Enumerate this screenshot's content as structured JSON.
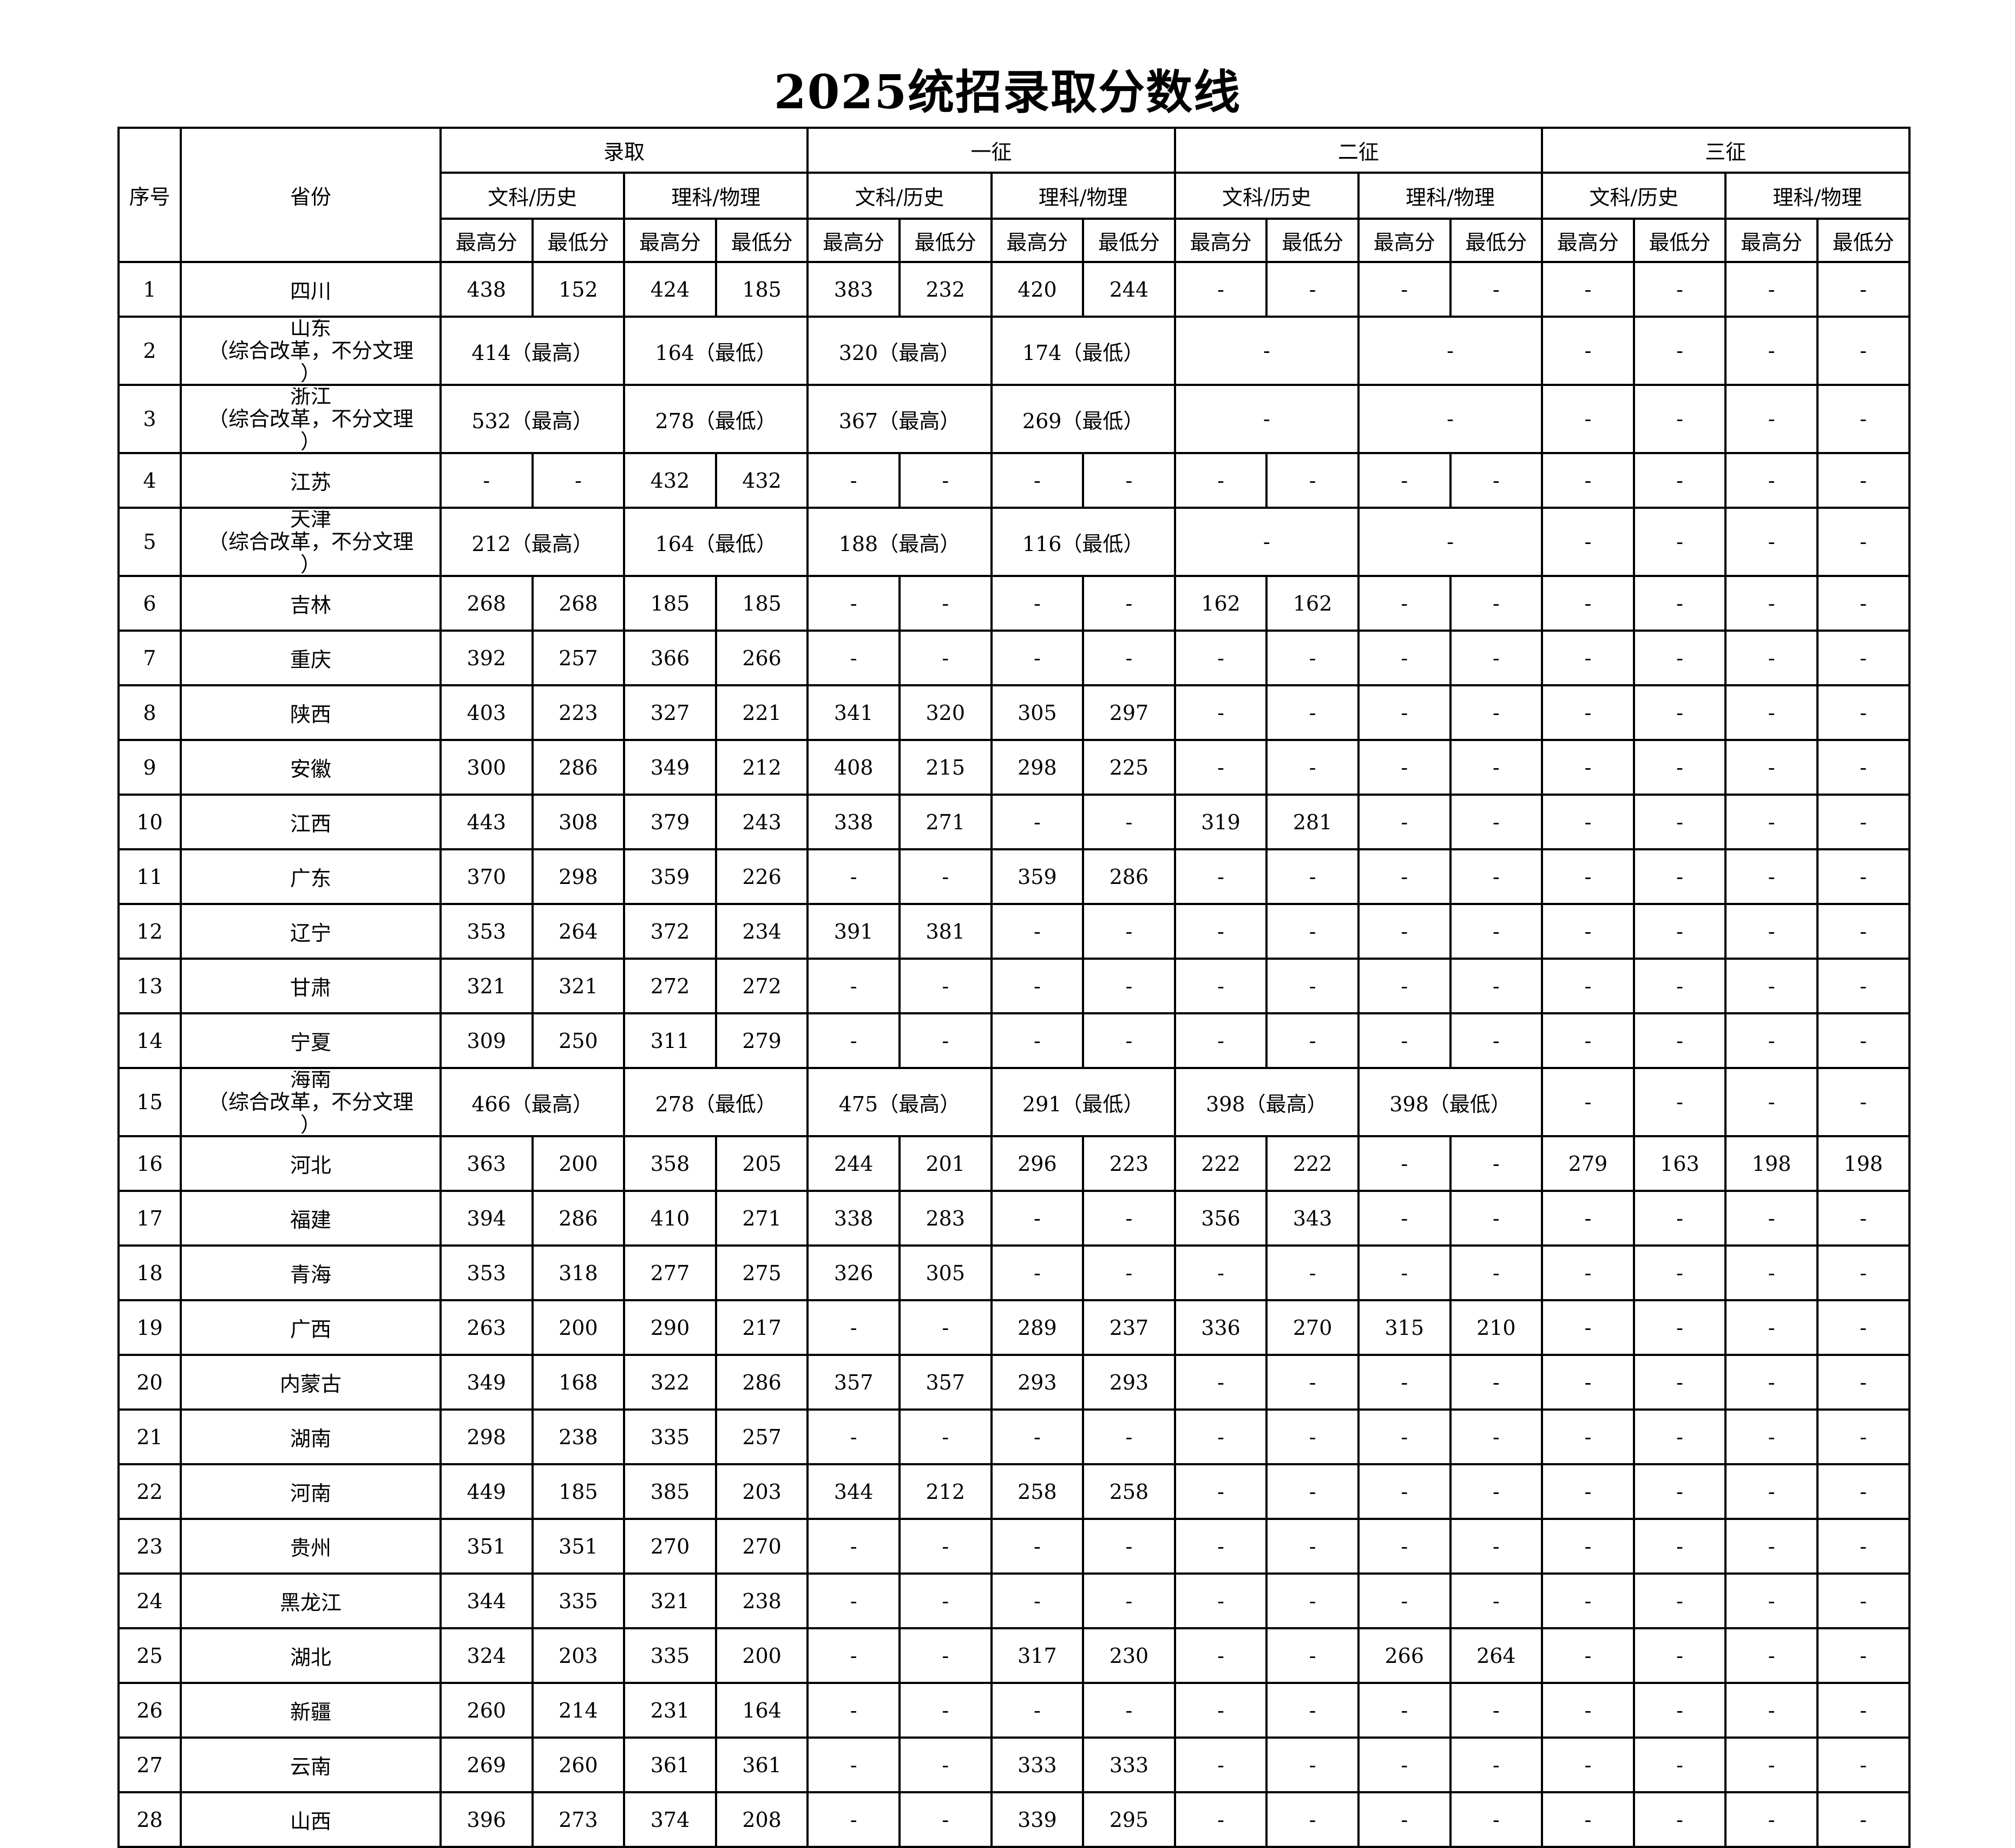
{
  "title": "2025统招录取分数线",
  "header": {
    "index": "序号",
    "province": "省份",
    "groups": [
      "录取",
      "一征",
      "二征",
      "三征"
    ],
    "subjects": [
      "文科/历史",
      "理科/物理"
    ],
    "scores": [
      "最高分",
      "最低分"
    ]
  },
  "rows": [
    {
      "no": "1",
      "province": "四川",
      "cells": [
        "438",
        "152",
        "424",
        "185",
        "383",
        "232",
        "420",
        "244",
        "-",
        "-",
        "-",
        "-",
        "-",
        "-",
        "-",
        "-"
      ]
    },
    {
      "no": "2",
      "province": "山东",
      "note": "（综合改革，不分文理",
      "note_end": "）",
      "merged": true,
      "cells": [
        "414（最高）",
        "164（最低）",
        "320（最高）",
        "174（最低）",
        "-",
        "-",
        "-",
        "-",
        "-",
        "-"
      ]
    },
    {
      "no": "3",
      "province": "浙江",
      "note": "（综合改革，不分文理",
      "note_end": "）",
      "merged": true,
      "cells": [
        "532（最高）",
        "278（最低）",
        "367（最高）",
        "269（最低）",
        "-",
        "-",
        "-",
        "-",
        "-",
        "-"
      ]
    },
    {
      "no": "4",
      "province": "江苏",
      "cells": [
        "-",
        "-",
        "432",
        "432",
        "-",
        "-",
        "-",
        "-",
        "-",
        "-",
        "-",
        "-",
        "-",
        "-",
        "-",
        "-"
      ]
    },
    {
      "no": "5",
      "province": "天津",
      "note": "（综合改革，不分文理",
      "note_end": "）",
      "merged": true,
      "cells": [
        "212（最高）",
        "164（最低）",
        "188（最高）",
        "116（最低）",
        "-",
        "-",
        "-",
        "-",
        "-",
        "-"
      ]
    },
    {
      "no": "6",
      "province": "吉林",
      "cells": [
        "268",
        "268",
        "185",
        "185",
        "-",
        "-",
        "-",
        "-",
        "162",
        "162",
        "-",
        "-",
        "-",
        "-",
        "-",
        "-"
      ]
    },
    {
      "no": "7",
      "province": "重庆",
      "cells": [
        "392",
        "257",
        "366",
        "266",
        "-",
        "-",
        "-",
        "-",
        "-",
        "-",
        "-",
        "-",
        "-",
        "-",
        "-",
        "-"
      ]
    },
    {
      "no": "8",
      "province": "陕西",
      "cells": [
        "403",
        "223",
        "327",
        "221",
        "341",
        "320",
        "305",
        "297",
        "-",
        "-",
        "-",
        "-",
        "-",
        "-",
        "-",
        "-"
      ]
    },
    {
      "no": "9",
      "province": "安徽",
      "cells": [
        "300",
        "286",
        "349",
        "212",
        "408",
        "215",
        "298",
        "225",
        "-",
        "-",
        "-",
        "-",
        "-",
        "-",
        "-",
        "-"
      ]
    },
    {
      "no": "10",
      "province": "江西",
      "cells": [
        "443",
        "308",
        "379",
        "243",
        "338",
        "271",
        "-",
        "-",
        "319",
        "281",
        "-",
        "-",
        "-",
        "-",
        "-",
        "-"
      ]
    },
    {
      "no": "11",
      "province": "广东",
      "cells": [
        "370",
        "298",
        "359",
        "226",
        "-",
        "-",
        "359",
        "286",
        "-",
        "-",
        "-",
        "-",
        "-",
        "-",
        "-",
        "-"
      ]
    },
    {
      "no": "12",
      "province": "辽宁",
      "cells": [
        "353",
        "264",
        "372",
        "234",
        "391",
        "381",
        "-",
        "-",
        "-",
        "-",
        "-",
        "-",
        "-",
        "-",
        "-",
        "-"
      ]
    },
    {
      "no": "13",
      "province": "甘肃",
      "cells": [
        "321",
        "321",
        "272",
        "272",
        "-",
        "-",
        "-",
        "-",
        "-",
        "-",
        "-",
        "-",
        "-",
        "-",
        "-",
        "-"
      ]
    },
    {
      "no": "14",
      "province": "宁夏",
      "cells": [
        "309",
        "250",
        "311",
        "279",
        "-",
        "-",
        "-",
        "-",
        "-",
        "-",
        "-",
        "-",
        "-",
        "-",
        "-",
        "-"
      ]
    },
    {
      "no": "15",
      "province": "海南",
      "note": "（综合改革，不分文理",
      "note_end": "）",
      "merged": true,
      "cells": [
        "466（最高）",
        "278（最低）",
        "475（最高）",
        "291（最低）",
        "398（最高）",
        "398（最低）",
        "-",
        "-",
        "-",
        "-"
      ]
    },
    {
      "no": "16",
      "province": "河北",
      "cells": [
        "363",
        "200",
        "358",
        "205",
        "244",
        "201",
        "296",
        "223",
        "222",
        "222",
        "-",
        "-",
        "279",
        "163",
        "198",
        "198"
      ]
    },
    {
      "no": "17",
      "province": "福建",
      "cells": [
        "394",
        "286",
        "410",
        "271",
        "338",
        "283",
        "-",
        "-",
        "356",
        "343",
        "-",
        "-",
        "-",
        "-",
        "-",
        "-"
      ]
    },
    {
      "no": "18",
      "province": "青海",
      "cells": [
        "353",
        "318",
        "277",
        "275",
        "326",
        "305",
        "-",
        "-",
        "-",
        "-",
        "-",
        "-",
        "-",
        "-",
        "-",
        "-"
      ]
    },
    {
      "no": "19",
      "province": "广西",
      "cells": [
        "263",
        "200",
        "290",
        "217",
        "-",
        "-",
        "289",
        "237",
        "336",
        "270",
        "315",
        "210",
        "-",
        "-",
        "-",
        "-"
      ]
    },
    {
      "no": "20",
      "province": "内蒙古",
      "cells": [
        "349",
        "168",
        "322",
        "286",
        "357",
        "357",
        "293",
        "293",
        "-",
        "-",
        "-",
        "-",
        "-",
        "-",
        "-",
        "-"
      ]
    },
    {
      "no": "21",
      "province": "湖南",
      "cells": [
        "298",
        "238",
        "335",
        "257",
        "-",
        "-",
        "-",
        "-",
        "-",
        "-",
        "-",
        "-",
        "-",
        "-",
        "-",
        "-"
      ]
    },
    {
      "no": "22",
      "province": "河南",
      "cells": [
        "449",
        "185",
        "385",
        "203",
        "344",
        "212",
        "258",
        "258",
        "-",
        "-",
        "-",
        "-",
        "-",
        "-",
        "-",
        "-"
      ]
    },
    {
      "no": "23",
      "province": "贵州",
      "cells": [
        "351",
        "351",
        "270",
        "270",
        "-",
        "-",
        "-",
        "-",
        "-",
        "-",
        "-",
        "-",
        "-",
        "-",
        "-",
        "-"
      ]
    },
    {
      "no": "24",
      "province": "黑龙江",
      "cells": [
        "344",
        "335",
        "321",
        "238",
        "-",
        "-",
        "-",
        "-",
        "-",
        "-",
        "-",
        "-",
        "-",
        "-",
        "-",
        "-"
      ]
    },
    {
      "no": "25",
      "province": "湖北",
      "cells": [
        "324",
        "203",
        "335",
        "200",
        "-",
        "-",
        "317",
        "230",
        "-",
        "-",
        "266",
        "264",
        "-",
        "-",
        "-",
        "-"
      ]
    },
    {
      "no": "26",
      "province": "新疆",
      "cells": [
        "260",
        "214",
        "231",
        "164",
        "-",
        "-",
        "-",
        "-",
        "-",
        "-",
        "-",
        "-",
        "-",
        "-",
        "-",
        "-"
      ]
    },
    {
      "no": "27",
      "province": "云南",
      "cells": [
        "269",
        "260",
        "361",
        "361",
        "-",
        "-",
        "333",
        "333",
        "-",
        "-",
        "-",
        "-",
        "-",
        "-",
        "-",
        "-"
      ]
    },
    {
      "no": "28",
      "province": "山西",
      "cells": [
        "396",
        "273",
        "374",
        "208",
        "-",
        "-",
        "339",
        "295",
        "-",
        "-",
        "-",
        "-",
        "-",
        "-",
        "-",
        "-"
      ]
    }
  ]
}
